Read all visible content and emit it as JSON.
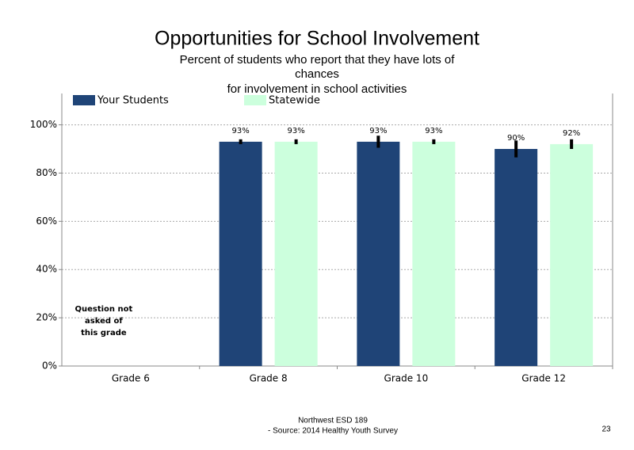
{
  "chart_data": {
    "type": "bar",
    "title": "Opportunities for School Involvement",
    "subtitle": [
      "Percent of students who report that they have lots of",
      "chances",
      "for involvement in school activities"
    ],
    "categories": [
      "Grade 6",
      "Grade 8",
      "Grade 10",
      "Grade 12"
    ],
    "series": [
      {
        "name": "Your Students",
        "color": "#1f4477",
        "values": [
          null,
          93,
          93,
          90
        ],
        "value_labels": [
          null,
          "93%",
          "93%",
          "90%"
        ],
        "errors": [
          null,
          1,
          2.5,
          3.5
        ]
      },
      {
        "name": "Statewide",
        "color": "#ccffdd",
        "values": [
          null,
          93,
          93,
          92
        ],
        "value_labels": [
          null,
          "93%",
          "93%",
          "92%"
        ],
        "errors": [
          null,
          1,
          1,
          2
        ]
      }
    ],
    "ylim": [
      0,
      113
    ],
    "yticks": [
      {
        "value": 0,
        "label": "0%"
      },
      {
        "value": 20,
        "label": "20%"
      },
      {
        "value": 40,
        "label": "40%"
      },
      {
        "value": 60,
        "label": "60%"
      },
      {
        "value": 80,
        "label": "80%"
      },
      {
        "value": 100,
        "label": "100%"
      }
    ],
    "grid": true,
    "annotation": [
      "Question not",
      "asked of",
      "this grade"
    ],
    "footer": [
      "Northwest ESD  189",
      "- Source: 2014 Healthy  Youth Survey"
    ],
    "page_number": "23"
  }
}
